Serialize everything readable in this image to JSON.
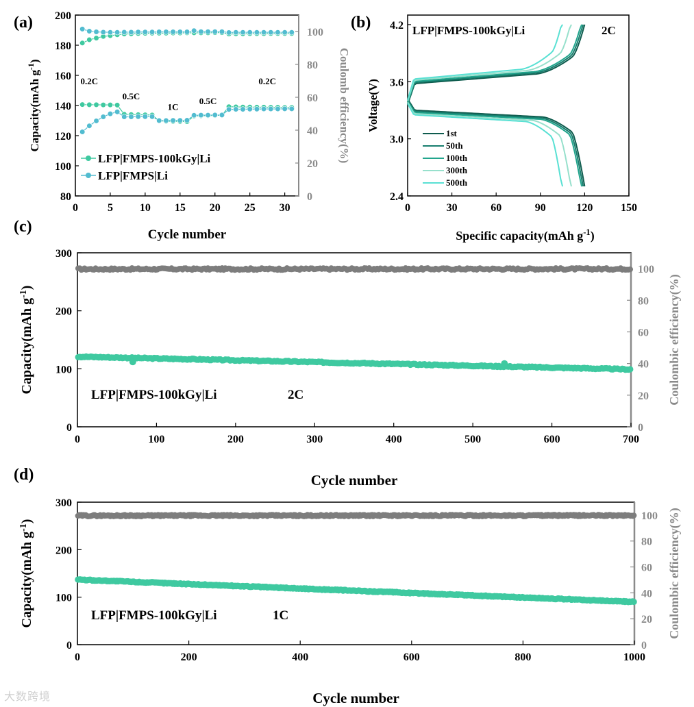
{
  "chart_data": [
    {
      "panel": "(a)",
      "type": "scatter",
      "xlabel": "Cycle number",
      "ylabel_left": "Capacity(mAh g-1)",
      "ylabel_right": "Coulomb efficiency(%)",
      "xlim": [
        0,
        32
      ],
      "ylim_left": [
        80,
        200
      ],
      "ylim_right": [
        0,
        110
      ],
      "xticks": [
        "0",
        "5",
        "10",
        "15",
        "20",
        "25",
        "30"
      ],
      "yticks_left": [
        "80",
        "100",
        "120",
        "140",
        "160",
        "180",
        "200"
      ],
      "yticks_right": [
        "0",
        "20",
        "40",
        "60",
        "80",
        "100"
      ],
      "rate_labels": [
        {
          "text": "0.2C",
          "cycle": 2,
          "capacity": 154
        },
        {
          "text": "0.5C",
          "cycle": 8,
          "capacity": 144
        },
        {
          "text": "1C",
          "cycle": 14,
          "capacity": 137
        },
        {
          "text": "0.5C",
          "cycle": 19,
          "capacity": 141
        },
        {
          "text": "0.2C",
          "cycle": 27.5,
          "capacity": 154
        }
      ],
      "series": [
        {
          "name": "LFP|FMPS-100kGy|Li",
          "color": "#3fc9a0",
          "axis": "left",
          "x": [
            1,
            2,
            3,
            4,
            5,
            6,
            7,
            8,
            9,
            10,
            11,
            12,
            13,
            14,
            15,
            16,
            17,
            18,
            19,
            20,
            21,
            22,
            23,
            24,
            25,
            26,
            27,
            28,
            29,
            30,
            31
          ],
          "values": [
            140.6,
            140.5,
            140.5,
            140.4,
            140.4,
            140.3,
            134.2,
            134.0,
            133.9,
            133.8,
            133.7,
            129.8,
            129.6,
            129.5,
            129.4,
            129.3,
            133.0,
            133.2,
            133.3,
            133.4,
            133.5,
            139.2,
            139.1,
            139.0,
            139.0,
            138.9,
            138.9,
            138.8,
            138.8,
            138.7,
            138.7
          ]
        },
        {
          "name": "LFP|FMPS|Li",
          "color": "#52bcd0",
          "axis": "left",
          "x": [
            1,
            2,
            3,
            4,
            5,
            6,
            7,
            8,
            9,
            10,
            11,
            12,
            13,
            14,
            15,
            16,
            17,
            18,
            19,
            20,
            21,
            22,
            23,
            24,
            25,
            26,
            27,
            28,
            29,
            30,
            31
          ],
          "values": [
            122.5,
            126.5,
            129.8,
            132.5,
            134.5,
            135.8,
            132.5,
            132.5,
            132.6,
            132.6,
            132.6,
            130.0,
            130.0,
            130.1,
            130.1,
            130.2,
            133.5,
            133.6,
            133.6,
            133.7,
            133.7,
            137.4,
            137.5,
            137.5,
            137.6,
            137.6,
            137.7,
            137.7,
            137.7,
            137.8,
            137.8
          ]
        },
        {
          "name": "CE LFP|FMPS-100kGy|Li",
          "color": "#3fc9a0",
          "axis": "right",
          "x": [
            1,
            2,
            3,
            4,
            5,
            6,
            7,
            8,
            9,
            10,
            11,
            12,
            13,
            14,
            15,
            16,
            17,
            18,
            19,
            20,
            21,
            22,
            23,
            24,
            25,
            26,
            27,
            28,
            29,
            30,
            31
          ],
          "values": [
            93.0,
            95.0,
            96.0,
            97.0,
            97.5,
            98.0,
            98.5,
            98.6,
            98.8,
            98.9,
            99.0,
            99.0,
            99.0,
            99.1,
            99.1,
            99.2,
            99.2,
            99.2,
            99.2,
            99.3,
            99.3,
            98.5,
            98.6,
            98.6,
            98.7,
            98.7,
            98.7,
            98.8,
            98.8,
            98.8,
            98.8
          ]
        },
        {
          "name": "CE LFP|FMPS|Li",
          "color": "#52bcd0",
          "axis": "right",
          "x": [
            1,
            2,
            3,
            4,
            5,
            6,
            7,
            8,
            9,
            10,
            11,
            12,
            13,
            14,
            15,
            16,
            17,
            18,
            19,
            20,
            21,
            22,
            23,
            24,
            25,
            26,
            27,
            28,
            29,
            30,
            31
          ],
          "values": [
            101.5,
            100.2,
            99.8,
            99.6,
            99.5,
            99.5,
            99.6,
            99.6,
            99.7,
            99.7,
            99.7,
            99.8,
            99.8,
            99.8,
            99.8,
            99.8,
            100.5,
            99.9,
            99.9,
            99.9,
            99.9,
            99.4,
            99.5,
            99.5,
            99.5,
            99.5,
            99.5,
            99.5,
            99.5,
            99.5,
            99.5
          ]
        }
      ]
    },
    {
      "panel": "(b)",
      "type": "line",
      "title": "LFP|FMPS-100kGy|Li",
      "rate": "2C",
      "xlabel": "Specific capacity(mAh g-1)",
      "ylabel": "Voltage(V)",
      "xlim": [
        0,
        150
      ],
      "ylim": [
        2.4,
        4.3
      ],
      "xticks": [
        "0",
        "30",
        "60",
        "90",
        "120",
        "150"
      ],
      "yticks": [
        "2.4",
        "3.0",
        "3.6",
        "4.2"
      ],
      "series": [
        {
          "name": "1st",
          "color": "#0f5c4e",
          "capacity": 120
        },
        {
          "name": "50th",
          "color": "#177e6e",
          "capacity": 119
        },
        {
          "name": "100th",
          "color": "#22a58d",
          "capacity": 118
        },
        {
          "name": "300th",
          "color": "#97e0cc",
          "capacity": 111
        },
        {
          "name": "500th",
          "color": "#58e0d3",
          "capacity": 105
        }
      ]
    },
    {
      "panel": "(c)",
      "type": "scatter",
      "label": "LFP|FMPS-100kGy|Li",
      "rate": "2C",
      "xlabel": "Cycle number",
      "ylabel_left": "Capacity(mAh g-1)",
      "ylabel_right": "Coulombic efficiency(%)",
      "xlim": [
        0,
        700
      ],
      "ylim_left": [
        0,
        300
      ],
      "ylim_right": [
        0,
        110
      ],
      "xticks": [
        "0",
        "100",
        "200",
        "300",
        "400",
        "500",
        "600",
        "700"
      ],
      "yticks_left": [
        "0",
        "100",
        "200",
        "300"
      ],
      "yticks_right": [
        "0",
        "20",
        "40",
        "60",
        "80",
        "100"
      ],
      "capacity_trend": {
        "start": 121,
        "end": 99
      },
      "efficiency_trend": {
        "start": 99.7,
        "end": 99.8
      }
    },
    {
      "panel": "(d)",
      "type": "scatter",
      "label": "LFP|FMPS-100kGy|Li",
      "rate": "1C",
      "xlabel": "Cycle number",
      "ylabel_left": "Capacity(mAh g-1)",
      "ylabel_right": "Coulombic efficiency(%)",
      "xlim": [
        0,
        1000
      ],
      "ylim_left": [
        0,
        300
      ],
      "ylim_right": [
        0,
        110
      ],
      "xticks": [
        "0",
        "200",
        "400",
        "600",
        "800",
        "1000"
      ],
      "yticks_left": [
        "0",
        "100",
        "200",
        "300"
      ],
      "yticks_right": [
        "0",
        "20",
        "40",
        "60",
        "80",
        "100"
      ],
      "capacity_trend": {
        "start": 137,
        "end": 90
      },
      "efficiency_trend": {
        "start": 99.6,
        "end": 99.7
      }
    }
  ],
  "watermark": "大数跨境"
}
